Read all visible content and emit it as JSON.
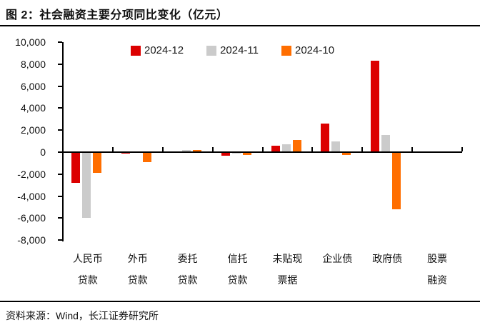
{
  "title": "图 2：社会融资主要分项同比变化（亿元）",
  "source": "资料来源：Wind，长江证券研究所",
  "colors": {
    "red": "#DC0000",
    "gray": "#CBCBCB",
    "orange": "#FF6E00",
    "axis": "#000000"
  },
  "legend": {
    "items": [
      "2024-12",
      "2024-11",
      "2024-10"
    ]
  },
  "chart_data": {
    "type": "bar",
    "title": "社会融资主要分项同比变化（亿元）",
    "categories": [
      "人民币贷款",
      "外币贷款",
      "委托贷款",
      "信托贷款",
      "未贴现票据",
      "企业债",
      "政府债",
      "股票融资"
    ],
    "category_label_lines": [
      [
        "人民币",
        "贷款"
      ],
      [
        "外币",
        "贷款"
      ],
      [
        "委托",
        "贷款"
      ],
      [
        "信托",
        "贷款"
      ],
      [
        "未贴现",
        "票据"
      ],
      [
        "企业债"
      ],
      [
        "政府债"
      ],
      [
        "股票",
        "融资"
      ]
    ],
    "series": [
      {
        "name": "2024-12",
        "color_key": "red",
        "values": [
          -2700,
          -60,
          0,
          -280,
          600,
          2600,
          8350,
          0
        ]
      },
      {
        "name": "2024-11",
        "color_key": "gray",
        "values": [
          -5900,
          0,
          170,
          -60,
          700,
          1000,
          1550,
          0
        ]
      },
      {
        "name": "2024-10",
        "color_key": "orange",
        "values": [
          -1850,
          -850,
          200,
          -180,
          1100,
          -200,
          -5150,
          0
        ]
      }
    ],
    "ylim": [
      -8000,
      10000
    ],
    "ytick_step": 2000,
    "ytick_labels": [
      "10,000",
      "8,000",
      "6,000",
      "4,000",
      "2,000",
      "0",
      "-2,000",
      "-4,000",
      "-6,000",
      "-8,000"
    ],
    "ytick_values": [
      10000,
      8000,
      6000,
      4000,
      2000,
      0,
      -2000,
      -4000,
      -6000,
      -8000
    ],
    "xlabel": "",
    "ylabel": "",
    "grid": false,
    "legend_position": "top"
  }
}
